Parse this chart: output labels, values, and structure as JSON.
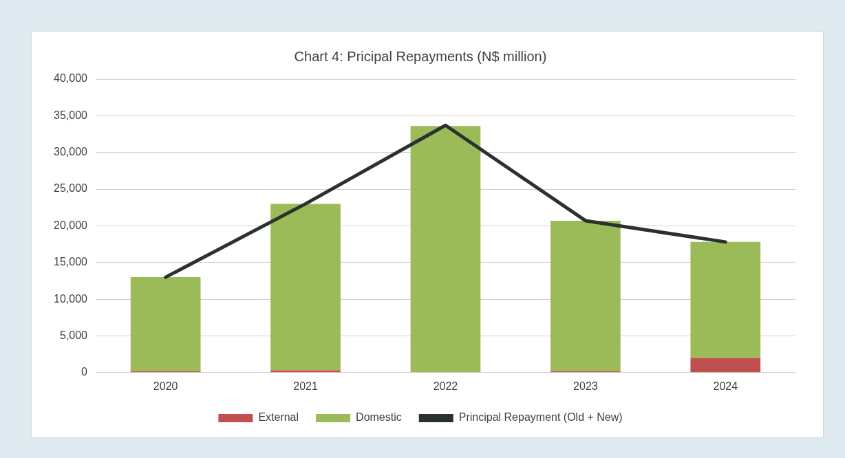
{
  "chart_data": {
    "type": "bar",
    "title": "Chart 4: Pricipal Repayments (N$ million)",
    "categories": [
      "2020",
      "2021",
      "2022",
      "2023",
      "2024"
    ],
    "stacked": true,
    "series": [
      {
        "name": "External",
        "color": "#c0504d",
        "values": [
          200,
          300,
          null,
          200,
          2000
        ]
      },
      {
        "name": "Domestic",
        "color": "#9bbb59",
        "values": [
          12800,
          22700,
          33600,
          20500,
          15800
        ]
      },
      {
        "name": "Principal Repayment (Old + New)",
        "type": "line",
        "color": "#2b3030",
        "values": [
          13000,
          23000,
          33700,
          20700,
          17800
        ]
      }
    ],
    "ylim": [
      0,
      40000
    ],
    "yticks": [
      0,
      {
        "value": 5000,
        "label": "5,000"
      },
      {
        "value": 10000,
        "label": "10,000"
      },
      {
        "value": 15000,
        "label": "15,000"
      },
      {
        "value": 20000,
        "label": "20,000"
      },
      {
        "value": 25000,
        "label": "25,000"
      },
      {
        "value": 30000,
        "label": "30,000"
      },
      {
        "value": 35000,
        "label": "35,000"
      },
      {
        "value": 40000,
        "label": "40,000"
      }
    ],
    "grid": "y",
    "legend": "bottom",
    "marker": "none"
  }
}
